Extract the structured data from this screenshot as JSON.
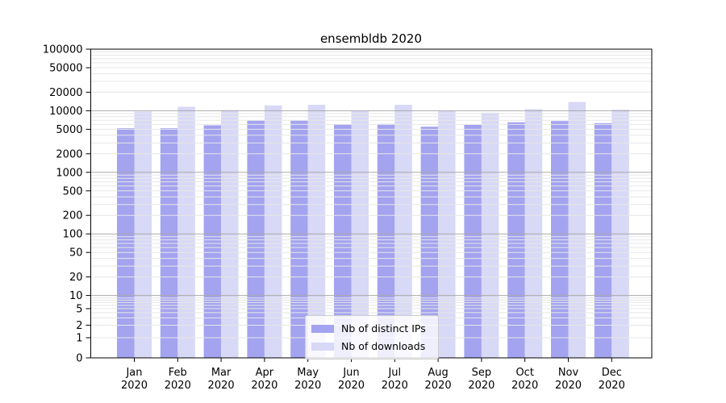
{
  "title": "ensembldb 2020",
  "colors": {
    "series_distinct_ips": "#a3a3f0",
    "series_downloads": "#d8d8f7",
    "grid_major": "#aaaaaa",
    "grid_minor": "#e7e7e7",
    "axis": "#000000",
    "text": "#000000",
    "background": "#ffffff"
  },
  "legend": {
    "items": [
      {
        "label": "Nb of distinct IPs",
        "color": "#a3a3f0"
      },
      {
        "label": "Nb of downloads",
        "color": "#d8d8f7"
      }
    ]
  },
  "chart_data": {
    "type": "bar",
    "title": "ensembldb 2020",
    "x_year": "2020",
    "categories": [
      "Jan",
      "Feb",
      "Mar",
      "Apr",
      "May",
      "Jun",
      "Jul",
      "Aug",
      "Sep",
      "Oct",
      "Nov",
      "Dec"
    ],
    "series": [
      {
        "name": "Nb of distinct IPs",
        "color": "#a3a3f0",
        "values": [
          5200,
          5200,
          5800,
          6900,
          6900,
          6000,
          6100,
          5500,
          5900,
          6500,
          6800,
          6300
        ]
      },
      {
        "name": "Nb of downloads",
        "color": "#d8d8f7",
        "values": [
          9700,
          11600,
          10200,
          12200,
          12500,
          10100,
          12500,
          9900,
          9300,
          10600,
          13900,
          10400
        ]
      }
    ],
    "xlabel": "",
    "ylabel": "",
    "y_scale": "symlog",
    "ylim": [
      0,
      100000
    ],
    "y_ticks": [
      0,
      1,
      2,
      5,
      10,
      20,
      50,
      100,
      200,
      500,
      1000,
      2000,
      5000,
      10000,
      20000,
      50000,
      100000
    ],
    "grid": "both, drawn above bars; major lines at powers of 10",
    "legend_position": "lower center"
  }
}
